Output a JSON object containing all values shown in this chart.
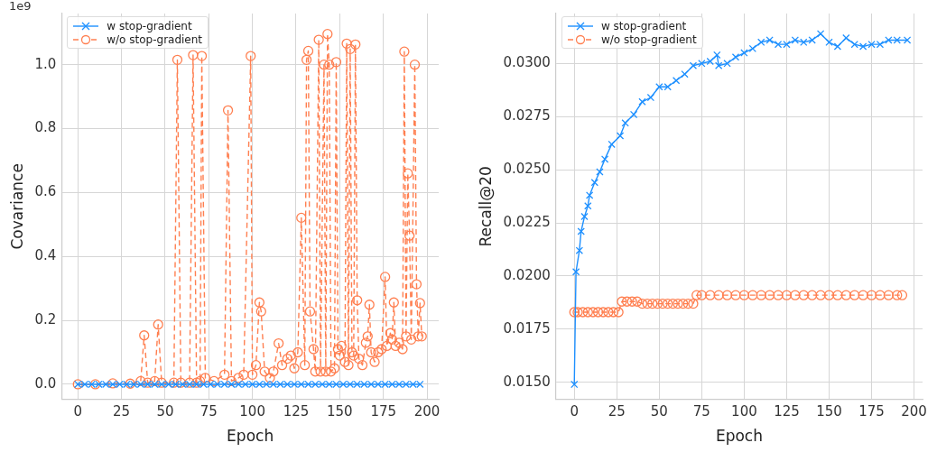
{
  "chart_data": [
    {
      "type": "line",
      "xlabel": "Epoch",
      "ylabel": "Covariance",
      "annotations": [
        "1e9"
      ],
      "xlim": [
        -9.3,
        206.7
      ],
      "ylim": [
        -0.047,
        1.16
      ],
      "xticks": [
        0,
        25,
        50,
        75,
        100,
        125,
        150,
        175,
        200
      ],
      "yticks": [
        {
          "value": 0,
          "label": "0.0"
        },
        {
          "value": 0.2,
          "label": "0.2"
        },
        {
          "value": 0.4,
          "label": "0.4"
        },
        {
          "value": 0.6,
          "label": "0.6"
        },
        {
          "value": 0.8,
          "label": "0.8"
        },
        {
          "value": 1.0,
          "label": "1.0"
        }
      ],
      "grid": true,
      "legend": "top left",
      "series": [
        {
          "name": "w stop-gradient",
          "color": "#1e90ff",
          "marker": "cross",
          "line_style": "solid",
          "x": [
            0,
            4,
            8,
            12,
            16,
            20,
            24,
            28,
            32,
            36,
            40,
            44,
            48,
            52,
            56,
            60,
            64,
            68,
            72,
            76,
            80,
            84,
            88,
            92,
            96,
            100,
            104,
            108,
            112,
            116,
            120,
            124,
            128,
            132,
            136,
            140,
            144,
            148,
            152,
            156,
            160,
            164,
            168,
            172,
            176,
            180,
            184,
            188,
            192,
            196
          ],
          "values": [
            0,
            0,
            0,
            0,
            0,
            0,
            0,
            0,
            0,
            0,
            0,
            0,
            0,
            0,
            0,
            0,
            0,
            0,
            0,
            0,
            0,
            0,
            0,
            0,
            0,
            0,
            0,
            0,
            0,
            0,
            0,
            0,
            0,
            0,
            0,
            0,
            0,
            0,
            0,
            0,
            0,
            0,
            0,
            0,
            0,
            0,
            0,
            0,
            0,
            0
          ]
        },
        {
          "name": "w/o stop-gradient",
          "color": "#ff7f50",
          "marker": "circle",
          "line_style": "dashed",
          "x": [
            0,
            10,
            20,
            30,
            36,
            38,
            40,
            44,
            46,
            48,
            55,
            57,
            59,
            64,
            66,
            68,
            70,
            71,
            73,
            78,
            84,
            86,
            88,
            92,
            95,
            99,
            100,
            102,
            104,
            105,
            107,
            110,
            112,
            115,
            117,
            120,
            122,
            124,
            126,
            128,
            130,
            131,
            132,
            133,
            135,
            136,
            138,
            139,
            141,
            142,
            143,
            144,
            145,
            147,
            148,
            149,
            150,
            151,
            153,
            154,
            155,
            156,
            157,
            158,
            159,
            160,
            161,
            163,
            165,
            166,
            167,
            168,
            170,
            172,
            174,
            176,
            177,
            179,
            180,
            181,
            182,
            184,
            186,
            187,
            188,
            189,
            190,
            191,
            193,
            194,
            195,
            196,
            197
          ],
          "values": [
            0,
            0,
            0.003,
            0.002,
            0.01,
            0.153,
            0.005,
            0.01,
            0.187,
            0.005,
            0.005,
            1.015,
            0.005,
            0.005,
            1.03,
            0.005,
            0.01,
            1.027,
            0.02,
            0.01,
            0.03,
            0.857,
            0.01,
            0.02,
            0.03,
            1.027,
            0.03,
            0.06,
            0.256,
            0.228,
            0.04,
            0.02,
            0.04,
            0.128,
            0.06,
            0.08,
            0.09,
            0.05,
            0.1,
            0.521,
            0.06,
            1.015,
            1.043,
            0.228,
            0.11,
            0.04,
            1.078,
            0.04,
            1.0,
            0.04,
            1.096,
            1.0,
            0.04,
            0.05,
            1.008,
            0.11,
            0.09,
            0.12,
            0.07,
            1.066,
            0.06,
            1.049,
            0.1,
            0.09,
            1.063,
            0.263,
            0.08,
            0.06,
            0.13,
            0.15,
            0.249,
            0.1,
            0.07,
            0.1,
            0.11,
            0.336,
            0.12,
            0.16,
            0.14,
            0.256,
            0.12,
            0.13,
            0.11,
            1.041,
            0.15,
            0.66,
            0.465,
            0.14,
            1.0,
            0.313,
            0.15,
            0.254,
            0.15
          ]
        }
      ]
    },
    {
      "type": "line",
      "xlabel": "Epoch",
      "ylabel": "Recall@20",
      "xlim": [
        -10.8,
        205
      ],
      "ylim": [
        0.0142,
        0.03235
      ],
      "xticks": [
        0,
        25,
        50,
        75,
        100,
        125,
        150,
        175,
        200
      ],
      "yticks": [
        {
          "value": 0.015,
          "label": "0.0150"
        },
        {
          "value": 0.0175,
          "label": "0.0175"
        },
        {
          "value": 0.02,
          "label": "0.0200"
        },
        {
          "value": 0.0225,
          "label": "0.0225"
        },
        {
          "value": 0.025,
          "label": "0.0250"
        },
        {
          "value": 0.0275,
          "label": "0.0275"
        },
        {
          "value": 0.03,
          "label": "0.0300"
        }
      ],
      "grid": true,
      "legend": "top left",
      "series": [
        {
          "name": "w stop-gradient",
          "color": "#1e90ff",
          "marker": "cross",
          "line_style": "solid",
          "x": [
            0,
            1,
            3,
            4,
            6,
            8,
            9,
            12,
            15,
            18,
            22,
            27,
            30,
            35,
            40,
            45,
            50,
            55,
            60,
            65,
            70,
            75,
            80,
            84,
            85,
            90,
            95,
            100,
            105,
            110,
            115,
            120,
            125,
            130,
            135,
            140,
            145,
            150,
            155,
            160,
            165,
            170,
            175,
            180,
            185,
            190,
            196
          ],
          "values": [
            0.0149,
            0.0202,
            0.0212,
            0.0221,
            0.0228,
            0.0233,
            0.0238,
            0.0244,
            0.0249,
            0.0255,
            0.0262,
            0.0266,
            0.0272,
            0.0276,
            0.0282,
            0.0284,
            0.0289,
            0.0289,
            0.0292,
            0.0295,
            0.0299,
            0.03,
            0.0301,
            0.0304,
            0.0299,
            0.03,
            0.0303,
            0.0305,
            0.0307,
            0.031,
            0.0311,
            0.0309,
            0.0309,
            0.0311,
            0.031,
            0.0311,
            0.0314,
            0.031,
            0.0308,
            0.0312,
            0.0309,
            0.0308,
            0.0309,
            0.0309,
            0.0311,
            0.0311,
            0.0311
          ]
        },
        {
          "name": "w/o stop-gradient",
          "color": "#ff7f50",
          "marker": "circle",
          "line_style": "dashed",
          "x": [
            0,
            2,
            5,
            8,
            11,
            14,
            17,
            20,
            23,
            26,
            28,
            31,
            34,
            37,
            40,
            43,
            46,
            49,
            52,
            55,
            58,
            61,
            64,
            67,
            70,
            72,
            75,
            80,
            85,
            90,
            95,
            100,
            105,
            110,
            115,
            120,
            125,
            130,
            135,
            140,
            145,
            150,
            155,
            160,
            165,
            170,
            175,
            180,
            185,
            190,
            193
          ],
          "values": [
            0.0183,
            0.0183,
            0.0183,
            0.0183,
            0.0183,
            0.0183,
            0.0183,
            0.0183,
            0.0183,
            0.0183,
            0.0188,
            0.0188,
            0.0188,
            0.0188,
            0.0187,
            0.0187,
            0.0187,
            0.0187,
            0.0187,
            0.0187,
            0.0187,
            0.0187,
            0.0187,
            0.0187,
            0.0187,
            0.0191,
            0.0191,
            0.0191,
            0.0191,
            0.0191,
            0.0191,
            0.0191,
            0.0191,
            0.0191,
            0.0191,
            0.0191,
            0.0191,
            0.0191,
            0.0191,
            0.0191,
            0.0191,
            0.0191,
            0.0191,
            0.0191,
            0.0191,
            0.0191,
            0.0191,
            0.0191,
            0.0191,
            0.0191,
            0.0191
          ]
        }
      ]
    }
  ]
}
